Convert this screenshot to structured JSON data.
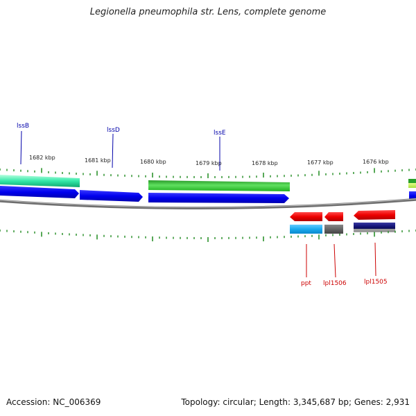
{
  "title": "Legionella pneumophila str. Lens, complete genome",
  "footer": {
    "accession": "Accession: NC_006369",
    "stats": "Topology: circular; Length: 3,345,687 bp; Genes: 2,931"
  },
  "colors": {
    "gene_label": "#0000aa",
    "rna_label": "#cc0000",
    "tick": "#1e8a1e",
    "backbone": "#777777"
  },
  "kbp_labels": [
    {
      "name": "kbp-1682",
      "text": "1682 kbp"
    },
    {
      "name": "kbp-1681",
      "text": "1681 kbp"
    },
    {
      "name": "kbp-1680",
      "text": "1680 kbp"
    },
    {
      "name": "kbp-1679",
      "text": "1679 kbp"
    },
    {
      "name": "kbp-1678",
      "text": "1678 kbp"
    },
    {
      "name": "kbp-1677",
      "text": "1677 kbp"
    },
    {
      "name": "kbp-1676",
      "text": "1676 kbp"
    }
  ],
  "gene_labels": [
    {
      "name": "gene-label-lssB",
      "text": "lssB"
    },
    {
      "name": "gene-label-lssD",
      "text": "lssD"
    },
    {
      "name": "gene-label-lssE",
      "text": "lssE"
    }
  ],
  "rna_labels": [
    {
      "name": "gene-label-ppt",
      "text": "ppt"
    },
    {
      "name": "gene-label-lpl1506",
      "text": "lpl1506"
    },
    {
      "name": "gene-label-lpl1505",
      "text": "lpl1505"
    }
  ]
}
